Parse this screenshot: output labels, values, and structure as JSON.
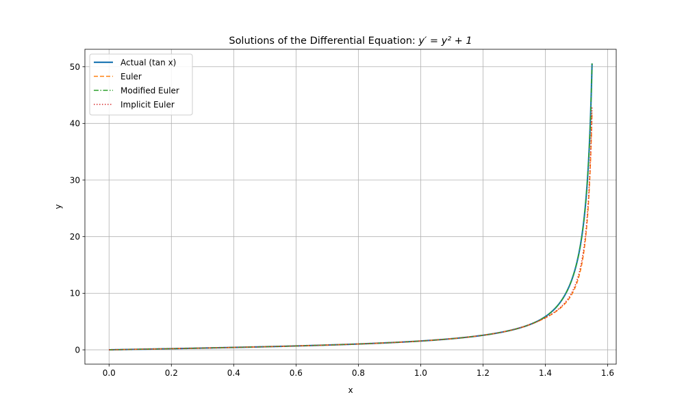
{
  "chart_data": {
    "type": "line",
    "title_prefix": "Solutions of the Differential Equation: ",
    "title_math": "y′ = y² + 1",
    "xlabel": "x",
    "ylabel": "y",
    "xlim": [
      -0.0775,
      1.6275
    ],
    "ylim": [
      -2.53,
      53.1
    ],
    "xticks": [
      0.0,
      0.2,
      0.4,
      0.6,
      0.8,
      1.0,
      1.2,
      1.4,
      1.6
    ],
    "xtick_labels": [
      "0.0",
      "0.2",
      "0.4",
      "0.6",
      "0.8",
      "1.0",
      "1.2",
      "1.4",
      "1.6"
    ],
    "yticks": [
      0,
      10,
      20,
      30,
      40,
      50
    ],
    "ytick_labels": [
      "0",
      "10",
      "20",
      "30",
      "40",
      "50"
    ],
    "grid": true,
    "legend_position": "upper-left",
    "x_range": [
      0.0,
      1.55
    ],
    "series": [
      {
        "name": "Actual (tan x)",
        "color": "#1f77b4",
        "style": "solid",
        "end_y": 50.6
      },
      {
        "name": "Euler",
        "color": "#ff7f0e",
        "style": "dashed",
        "end_y": 42.0
      },
      {
        "name": "Modified Euler",
        "color": "#2ca02c",
        "style": "dashdot",
        "end_y": 50.6
      },
      {
        "name": "Implicit Euler",
        "color": "#d62728",
        "style": "dotted",
        "end_y": 43.0
      }
    ]
  }
}
